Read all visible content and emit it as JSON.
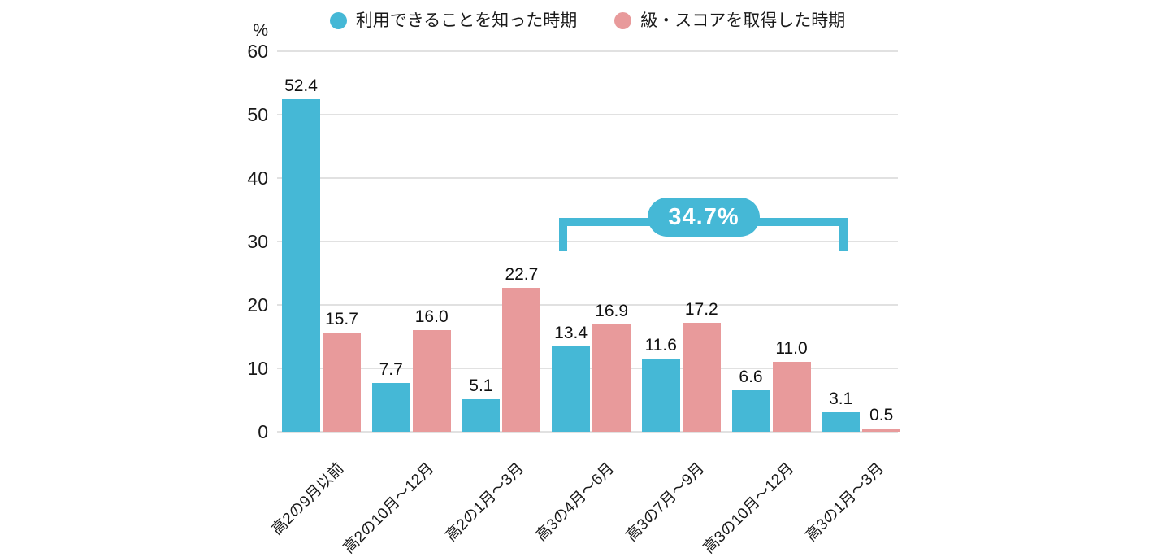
{
  "chart_data": {
    "type": "bar",
    "title": "",
    "y_unit": "%",
    "ylim": [
      0,
      60
    ],
    "yticks": [
      0,
      10,
      20,
      30,
      40,
      50,
      60
    ],
    "grid": true,
    "legend_position": "top-center",
    "categories": [
      "高2の9月以前",
      "高2の10月〜12月",
      "高2の1月〜3月",
      "高3の4月〜6月",
      "高3の7月〜9月",
      "高3の10月〜12月",
      "高3の1月〜3月"
    ],
    "series": [
      {
        "name": "利用できることを知った時期",
        "color": "#45b8d6",
        "values": [
          52.4,
          7.7,
          5.1,
          13.4,
          11.6,
          6.6,
          3.1
        ],
        "labels": [
          "52.4",
          "7.7",
          "5.1",
          "13.4",
          "11.6",
          "6.6",
          "3.1"
        ]
      },
      {
        "name": "級・スコアを取得した時期",
        "color": "#e89a9b",
        "values": [
          15.7,
          16.0,
          22.7,
          16.9,
          17.2,
          11.0,
          0.5
        ],
        "labels": [
          "15.7",
          "16.0",
          "22.7",
          "16.9",
          "17.2",
          "11.0",
          "0.5"
        ]
      }
    ],
    "annotation": {
      "label": "34.7%",
      "series": 0,
      "from_category_index": 3,
      "to_category_index": 6,
      "color": "#45b8d6"
    }
  },
  "colors": {
    "grid": "#e1e1e1",
    "text": "#1a1a1a",
    "background": "#ffffff"
  }
}
